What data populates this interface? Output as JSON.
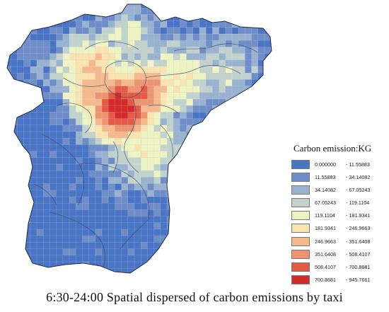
{
  "legend": {
    "title": "Carbon emission:KG",
    "classes": [
      {
        "low": "0.000000",
        "high": "11.55883",
        "color": "#4a74c4"
      },
      {
        "low": "11.55883",
        "high": "34.14082",
        "color": "#6f8ec8"
      },
      {
        "low": "34.14082",
        "high": "67.05243",
        "color": "#98b2cf"
      },
      {
        "low": "67.05243",
        "high": "119.1104",
        "color": "#c2d3cc"
      },
      {
        "low": "119.1104",
        "high": "181.9341",
        "color": "#eef3c2"
      },
      {
        "low": "181.9341",
        "high": "246.9663",
        "color": "#fbe3b0"
      },
      {
        "low": "246.9663",
        "high": "351.6408",
        "color": "#f6b98c"
      },
      {
        "low": "351.6408",
        "high": "508.4107",
        "color": "#ee9470"
      },
      {
        "low": "508.4107",
        "high": "700.8681",
        "color": "#e45a45"
      },
      {
        "low": "700.8681",
        "high": "945.7661",
        "color": "#d42a2a"
      }
    ]
  },
  "caption": "6:30-24:00  Spatial dispersed of  carbon emissions by taxi"
}
